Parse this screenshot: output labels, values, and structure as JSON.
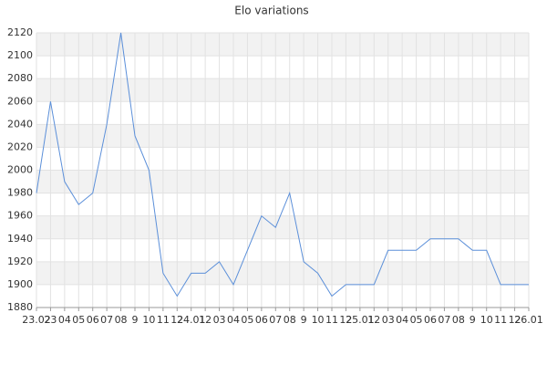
{
  "chart_data": {
    "type": "line",
    "title": "Elo variations",
    "categories": [
      "23.02",
      "23",
      "04",
      "05",
      "06",
      "07",
      "08",
      "9",
      "10",
      "11",
      "12",
      "24.01",
      "12",
      "03",
      "04",
      "05",
      "06",
      "07",
      "08",
      "9",
      "10",
      "11",
      "12",
      "25.01",
      "12",
      "03",
      "04",
      "05",
      "06",
      "07",
      "08",
      "9",
      "10",
      "11",
      "12",
      "26.01"
    ],
    "values": [
      1980,
      2060,
      1990,
      1970,
      1980,
      2040,
      2120,
      2030,
      2000,
      1910,
      1890,
      1910,
      1910,
      1920,
      1900,
      1930,
      1960,
      1950,
      1980,
      1920,
      1910,
      1890,
      1900,
      1900,
      1900,
      1930,
      1930,
      1930,
      1940,
      1940,
      1940,
      1930,
      1930,
      1900,
      1900,
      1900
    ],
    "color": "#5b8fd9",
    "ylim": [
      1880,
      2120
    ],
    "yticks": [
      1880,
      1900,
      1920,
      1940,
      1960,
      1980,
      2000,
      2020,
      2040,
      2060,
      2080,
      2100,
      2120
    ],
    "grid": true
  }
}
